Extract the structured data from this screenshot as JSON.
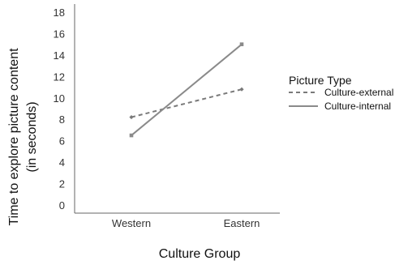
{
  "chart_data": {
    "type": "line",
    "categories": [
      "Western",
      "Eastern"
    ],
    "series": [
      {
        "name": "Culture-external",
        "values": [
          8.2,
          10.8
        ],
        "style": "dashed",
        "marker": "diamond",
        "color": "#7a7a7a"
      },
      {
        "name": "Culture-internal",
        "values": [
          6.5,
          15.0
        ],
        "style": "solid",
        "marker": "square",
        "color": "#8a8a8a"
      }
    ],
    "xlabel": "Culture Group",
    "ylabel_lines": [
      "Time to explore picture content",
      "(in seconds)"
    ],
    "ylim": [
      0,
      18
    ],
    "yticks": [
      0,
      2,
      4,
      6,
      8,
      10,
      12,
      14,
      16,
      18
    ],
    "grid": false,
    "legend": {
      "title": "Picture Type",
      "placement": "right"
    },
    "axis_color": "#666666"
  }
}
